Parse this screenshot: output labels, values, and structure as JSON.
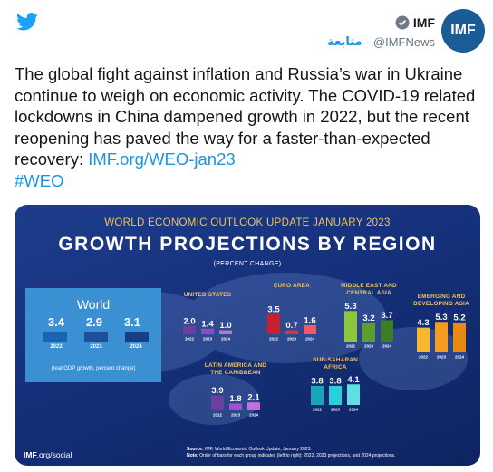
{
  "header": {
    "display_name": "IMF",
    "handle": "@IMFNews",
    "dot": "·",
    "follow_label": "متابعة",
    "avatar_text": "IMF",
    "icons": {
      "logo": "twitter-bird-icon",
      "verified": "verified-badge-icon"
    }
  },
  "tweet": {
    "body": "The global fight against inflation and Russia’s war in Ukraine continue to weigh on economic activity. The COVID-19 related lockdowns in China dampened growth in 2022, but the recent reopening has paved the way for a faster-than-expected recovery: ",
    "link": "IMF.org/WEO-jan23",
    "hashtag": "#WEO"
  },
  "infographic": {
    "subtitle": "WORLD ECONOMIC OUTLOOK UPDATE JANUARY 2023",
    "title": "GROWTH PROJECTIONS BY REGION",
    "unit": "(PERCENT CHANGE)",
    "world": {
      "title": "World",
      "values": [
        "3.4",
        "2.9",
        "3.1"
      ],
      "years": [
        "2022",
        "2023",
        "2024"
      ],
      "note": "(real GDP growth, percent change)"
    },
    "footer_logo_bold": "IMF",
    "footer_logo_rest": ".org/social",
    "source_label": "Source:",
    "source_text": " IMF, World Economic Outlook Update, January 2023.",
    "note_label": "Note:",
    "note_text": " Order of bars for each group indicates (left to right): 2022, 2023 projections, and 2024 projections."
  },
  "chart_data": {
    "type": "bar",
    "categories": [
      "2022",
      "2023",
      "2024"
    ],
    "series": [
      {
        "name": "World",
        "values": [
          3.4,
          2.9,
          3.1
        ]
      },
      {
        "name": "UNITED STATES",
        "values": [
          2.0,
          1.4,
          1.0
        ]
      },
      {
        "name": "EURO AREA",
        "values": [
          3.5,
          0.7,
          1.6
        ]
      },
      {
        "name": "MIDDLE EAST AND CENTRAL ASIA",
        "values": [
          5.3,
          3.2,
          3.7
        ]
      },
      {
        "name": "EMERGING AND DEVELOPING ASIA",
        "values": [
          4.3,
          5.3,
          5.2
        ]
      },
      {
        "name": "LATIN AMERICA AND THE CARIBBEAN",
        "values": [
          3.9,
          1.8,
          2.1
        ]
      },
      {
        "name": "SUB-SAHARAN AFRICA",
        "values": [
          3.8,
          3.8,
          4.1
        ]
      }
    ],
    "region_labels": {
      "us": [
        "UNITED STATES"
      ],
      "euro": [
        "EURO AREA"
      ],
      "mena": [
        "MIDDLE EAST AND",
        "CENTRAL ASIA"
      ],
      "asia": [
        "EMERGING AND",
        "DEVELOPING ASIA"
      ],
      "latam": [
        "LATIN AMERICA AND",
        "THE CARIBBEAN"
      ],
      "ssa": [
        "SUB-SAHARAN AFRICA"
      ]
    },
    "value_labels": {
      "us": [
        "2.0",
        "1.4",
        "1.0"
      ],
      "euro": [
        "3.5",
        "0.7",
        "1.6"
      ],
      "mena": [
        "5.3",
        "3.2",
        "3.7"
      ],
      "asia": [
        "4.3",
        "5.3",
        "5.2"
      ],
      "latam": [
        "3.9",
        "1.8",
        "2.1"
      ],
      "ssa": [
        "3.8",
        "3.8",
        "4.1"
      ]
    },
    "colors": {
      "world": [
        "#1a63b0",
        "#1d4f9a",
        "#173f86"
      ],
      "us": [
        "#6b3fa0",
        "#8a4fc0",
        "#b07ad8"
      ],
      "euro": [
        "#c8202e",
        "#e0303e",
        "#ee5a64"
      ],
      "mena": [
        "#8cc63f",
        "#5a9e2e",
        "#3d7d24"
      ],
      "asia": [
        "#f7b731",
        "#f59b1f",
        "#e88a12"
      ],
      "latam": [
        "#6b3fa0",
        "#a050d0",
        "#c070e0"
      ],
      "ssa": [
        "#16a8b8",
        "#2ad0d8",
        "#60e0e0"
      ]
    }
  }
}
